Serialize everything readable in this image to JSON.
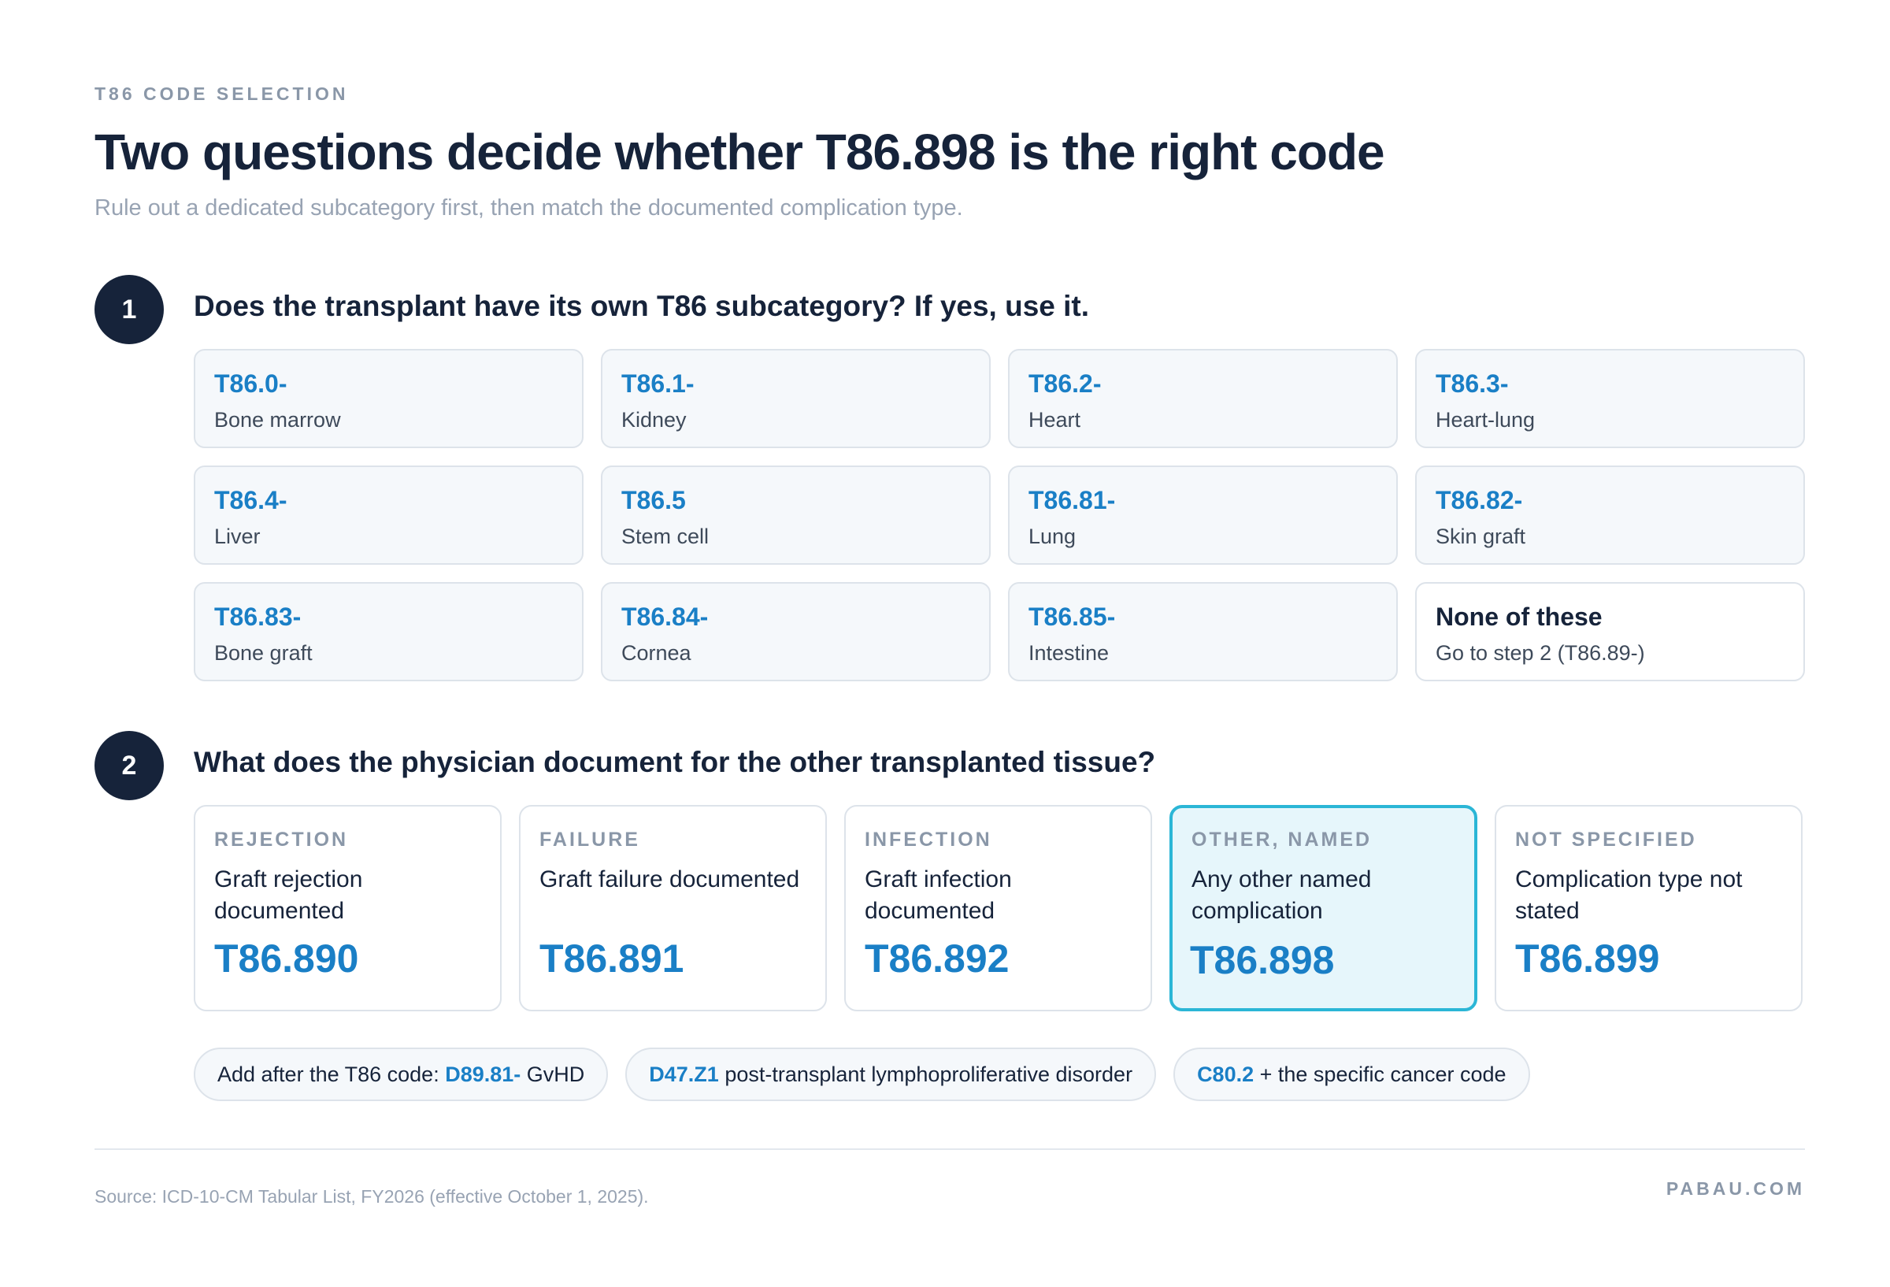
{
  "header": {
    "eyebrow": "T86 CODE SELECTION",
    "title": "Two questions decide whether T86.898 is the right code",
    "subtitle": "Rule out a dedicated subcategory first, then match the documented complication type."
  },
  "step1": {
    "number": "1",
    "question": "Does the transplant have its own T86 subcategory? If yes, use it.",
    "cards": [
      {
        "code": "T86.0-",
        "label": "Bone marrow"
      },
      {
        "code": "T86.1-",
        "label": "Kidney"
      },
      {
        "code": "T86.2-",
        "label": "Heart"
      },
      {
        "code": "T86.3-",
        "label": "Heart-lung"
      },
      {
        "code": "T86.4-",
        "label": "Liver"
      },
      {
        "code": "T86.5",
        "label": "Stem cell"
      },
      {
        "code": "T86.81-",
        "label": "Lung"
      },
      {
        "code": "T86.82-",
        "label": "Skin graft"
      },
      {
        "code": "T86.83-",
        "label": "Bone graft"
      },
      {
        "code": "T86.84-",
        "label": "Cornea"
      },
      {
        "code": "T86.85-",
        "label": "Intestine"
      },
      {
        "code": "None of these",
        "label": "Go to step 2 (T86.89-)"
      }
    ]
  },
  "step2": {
    "number": "2",
    "question": "What does the physician document for the other transplanted tissue?",
    "cards": [
      {
        "head": "REJECTION",
        "desc": "Graft rejection documented",
        "code": "T86.890"
      },
      {
        "head": "FAILURE",
        "desc": "Graft failure documented",
        "code": "T86.891"
      },
      {
        "head": "INFECTION",
        "desc": "Graft infection documented",
        "code": "T86.892"
      },
      {
        "head": "OTHER, NAMED",
        "desc": "Any other named complication",
        "code": "T86.898"
      },
      {
        "head": "NOT SPECIFIED",
        "desc": "Complication type not stated",
        "code": "T86.899"
      }
    ]
  },
  "pills": [
    {
      "prefix": "Add after the T86 code: ",
      "code": "D89.81-",
      "suffix": " GvHD"
    },
    {
      "prefix": "",
      "code": "D47.Z1",
      "suffix": " post-transplant lymphoproliferative disorder"
    },
    {
      "prefix": "",
      "code": "C80.2",
      "suffix": " + the specific cancer code"
    }
  ],
  "footer": {
    "source": "Source: ICD-10-CM Tabular List, FY2026 (effective October 1, 2025).",
    "brand": "PABAU.COM"
  },
  "colors": {
    "accent": "#1a7fc6",
    "highlight_border": "#2bb6d6",
    "highlight_bg": "#e6f6fb",
    "dark": "#16233a"
  }
}
